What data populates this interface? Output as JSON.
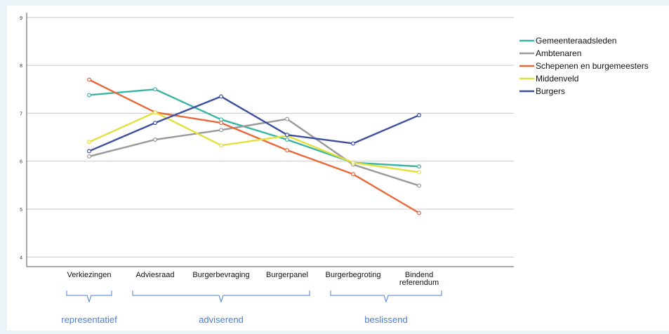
{
  "chart_data": {
    "type": "line",
    "categories": [
      "Verkiezingen",
      "Adviesraad",
      "Burgerbevraging",
      "Burgerpanel",
      "Burgerbegroting",
      "Bindend referendum"
    ],
    "category_lines": [
      [
        "Verkiezingen"
      ],
      [
        "Adviesraad"
      ],
      [
        "Burgerbevraging"
      ],
      [
        "Burgerpanel"
      ],
      [
        "Burgerbegroting"
      ],
      [
        "Bindend",
        "referendum"
      ]
    ],
    "ylim": [
      3.8,
      9.1
    ],
    "yticks": [
      4,
      5,
      6,
      7,
      8,
      9
    ],
    "grid": true,
    "legend_position": "top-right",
    "series": [
      {
        "name": "Gemeenteraadsleden",
        "color": "#3ab5a4",
        "values": [
          7.38,
          7.5,
          6.87,
          6.45,
          5.97,
          5.89
        ]
      },
      {
        "name": "Ambtenaren",
        "color": "#999999",
        "values": [
          6.1,
          6.45,
          6.65,
          6.88,
          5.93,
          5.49
        ]
      },
      {
        "name": "Schepenen en burgemeesters",
        "color": "#e8683a",
        "values": [
          7.7,
          7.02,
          6.8,
          6.23,
          5.73,
          4.92
        ]
      },
      {
        "name": "Middenveld",
        "color": "#e3e03c",
        "values": [
          6.4,
          7.02,
          6.33,
          6.53,
          5.97,
          5.77
        ]
      },
      {
        "name": "Burgers",
        "color": "#3d4fa0",
        "values": [
          6.21,
          6.8,
          7.35,
          6.55,
          6.37,
          6.96
        ]
      }
    ],
    "groups": [
      {
        "label": "representatief",
        "from": 0,
        "to": 0
      },
      {
        "label": "adviserend",
        "from": 1,
        "to": 3
      },
      {
        "label": "beslissend",
        "from": 4,
        "to": 5
      }
    ],
    "group_color": "#4a7fd0"
  }
}
